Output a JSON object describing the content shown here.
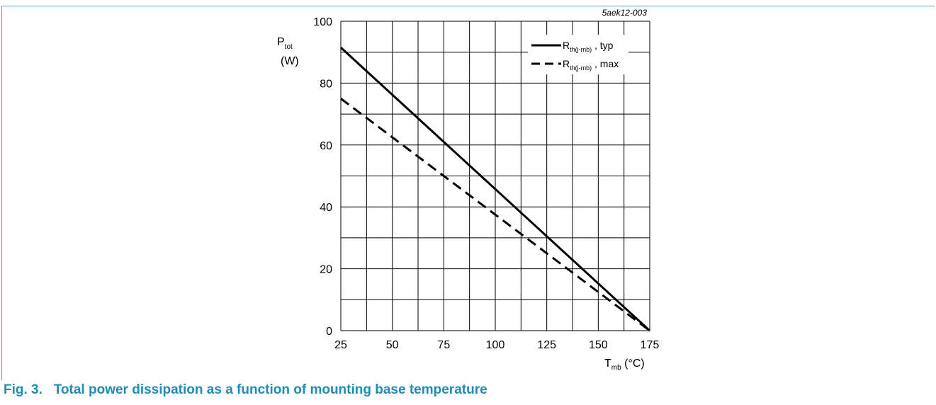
{
  "figure_id": "5aek12-003",
  "caption": "Fig. 3.   Total power dissipation as a function of mounting base temperature",
  "chart_data": {
    "type": "line",
    "ylabel": {
      "main": "P",
      "sub": "tot",
      "unit": "(W)"
    },
    "xlabel": {
      "main": "T",
      "sub": "mb",
      "unit": " (°C)"
    },
    "xlim": [
      25,
      175
    ],
    "ylim": [
      0,
      100
    ],
    "xticks": [
      25,
      50,
      75,
      100,
      125,
      150,
      175
    ],
    "yticks": [
      0,
      20,
      40,
      60,
      80,
      100
    ],
    "x_grid_step": 12.5,
    "y_grid_step": 10,
    "grid": true,
    "legend_position": "top-right",
    "series": [
      {
        "label": "R",
        "label_sub": "th(j-mb)",
        "label_suffix": " , typ",
        "style": "solid",
        "x": [
          25,
          175
        ],
        "y": [
          91.5,
          0
        ]
      },
      {
        "label": "R",
        "label_sub": "th(j-mb)",
        "label_suffix": " , max",
        "style": "dashed",
        "x": [
          25,
          175
        ],
        "y": [
          75,
          0
        ]
      }
    ]
  }
}
